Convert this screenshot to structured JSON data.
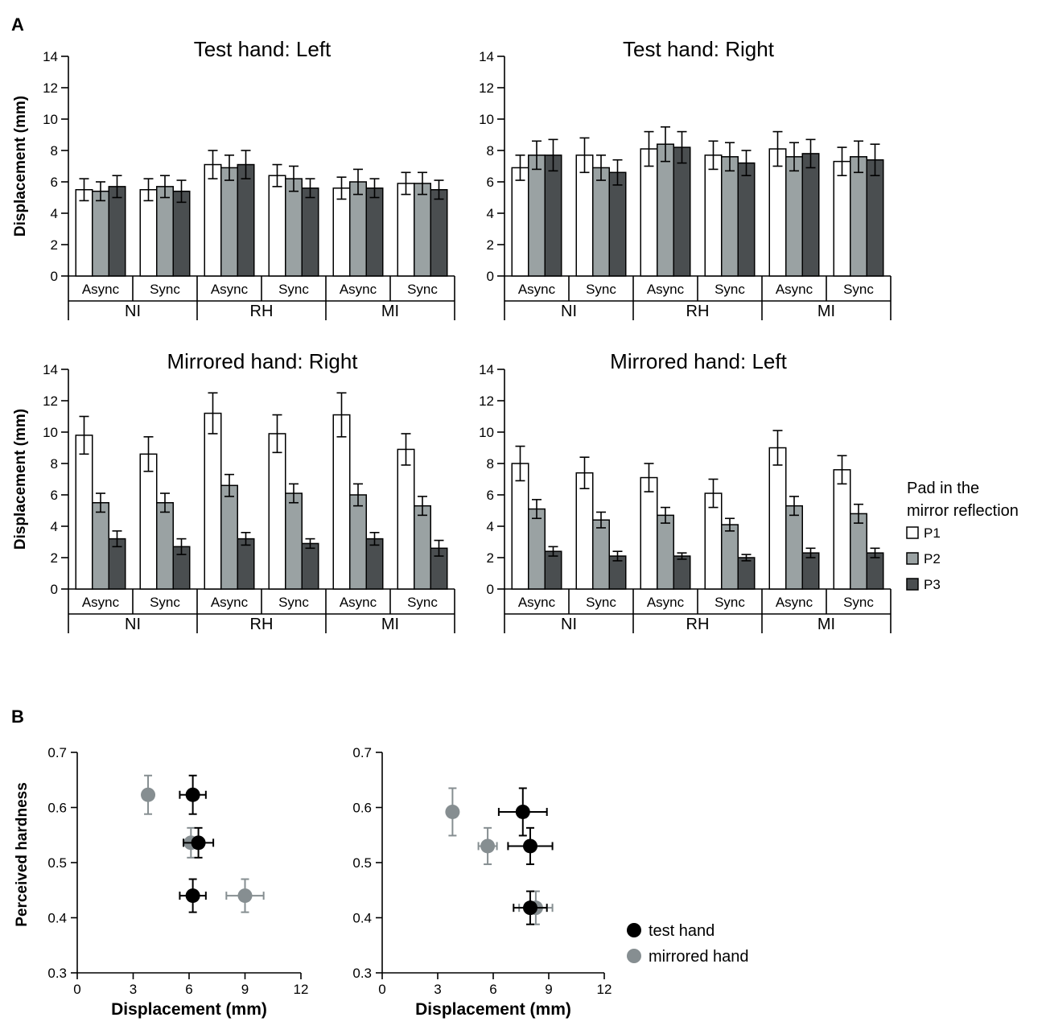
{
  "panel_labels": {
    "a": "A",
    "b": "B"
  },
  "legend": {
    "title_line1": "Pad in the",
    "title_line2": "mirror reflection",
    "pads": [
      {
        "label": "P1",
        "color": "#ffffff"
      },
      {
        "label": "P2",
        "color": "#9aa2a3"
      },
      {
        "label": "P3",
        "color": "#4a4e50"
      }
    ],
    "scatter": [
      {
        "label": "test hand",
        "color": "#000000"
      },
      {
        "label": "mirrored hand",
        "color": "#868e91"
      }
    ]
  },
  "chart_data": [
    {
      "type": "bar",
      "title": "Test hand: Left",
      "ylabel": "Displacement (mm)",
      "ylim": [
        0,
        14
      ],
      "yticks": [
        0,
        2,
        4,
        6,
        8,
        10,
        12,
        14
      ],
      "groups": [
        "NI",
        "RH",
        "MI"
      ],
      "subgroups": [
        "Async",
        "Sync"
      ],
      "series": [
        {
          "name": "P1",
          "values": [
            5.5,
            5.5,
            7.1,
            6.4,
            5.6,
            5.9
          ],
          "errors": [
            0.7,
            0.7,
            0.9,
            0.7,
            0.7,
            0.7
          ]
        },
        {
          "name": "P2",
          "values": [
            5.4,
            5.7,
            6.9,
            6.2,
            6.0,
            5.9
          ],
          "errors": [
            0.6,
            0.7,
            0.8,
            0.8,
            0.8,
            0.7
          ]
        },
        {
          "name": "P3",
          "values": [
            5.7,
            5.4,
            7.1,
            5.6,
            5.6,
            5.5
          ],
          "errors": [
            0.7,
            0.7,
            0.9,
            0.6,
            0.6,
            0.6
          ]
        }
      ]
    },
    {
      "type": "bar",
      "title": "Test hand: Right",
      "ylabel": "",
      "ylim": [
        0,
        14
      ],
      "yticks": [
        0,
        2,
        4,
        6,
        8,
        10,
        12,
        14
      ],
      "groups": [
        "NI",
        "RH",
        "MI"
      ],
      "subgroups": [
        "Async",
        "Sync"
      ],
      "series": [
        {
          "name": "P1",
          "values": [
            6.9,
            7.7,
            8.1,
            7.7,
            8.1,
            7.3
          ],
          "errors": [
            0.8,
            1.1,
            1.1,
            0.9,
            1.1,
            0.9
          ]
        },
        {
          "name": "P2",
          "values": [
            7.7,
            6.9,
            8.4,
            7.6,
            7.6,
            7.6
          ],
          "errors": [
            0.9,
            0.8,
            1.1,
            0.9,
            0.9,
            1.0
          ]
        },
        {
          "name": "P3",
          "values": [
            7.7,
            6.6,
            8.2,
            7.2,
            7.8,
            7.4
          ],
          "errors": [
            1.0,
            0.8,
            1.0,
            0.8,
            0.9,
            1.0
          ]
        }
      ]
    },
    {
      "type": "bar",
      "title": "Mirrored hand: Right",
      "ylabel": "Displacement (mm)",
      "ylim": [
        0,
        14
      ],
      "yticks": [
        0,
        2,
        4,
        6,
        8,
        10,
        12,
        14
      ],
      "groups": [
        "NI",
        "RH",
        "MI"
      ],
      "subgroups": [
        "Async",
        "Sync"
      ],
      "series": [
        {
          "name": "P1",
          "values": [
            9.8,
            8.6,
            11.2,
            9.9,
            11.1,
            8.9
          ],
          "errors": [
            1.2,
            1.1,
            1.3,
            1.2,
            1.4,
            1.0
          ]
        },
        {
          "name": "P2",
          "values": [
            5.5,
            5.5,
            6.6,
            6.1,
            6.0,
            5.3
          ],
          "errors": [
            0.6,
            0.6,
            0.7,
            0.6,
            0.7,
            0.6
          ]
        },
        {
          "name": "P3",
          "values": [
            3.2,
            2.7,
            3.2,
            2.9,
            3.2,
            2.6
          ],
          "errors": [
            0.5,
            0.5,
            0.4,
            0.3,
            0.4,
            0.5
          ]
        }
      ]
    },
    {
      "type": "bar",
      "title": "Mirrored hand: Left",
      "ylabel": "",
      "ylim": [
        0,
        14
      ],
      "yticks": [
        0,
        2,
        4,
        6,
        8,
        10,
        12,
        14
      ],
      "groups": [
        "NI",
        "RH",
        "MI"
      ],
      "subgroups": [
        "Async",
        "Sync"
      ],
      "series": [
        {
          "name": "P1",
          "values": [
            8.0,
            7.4,
            7.1,
            6.1,
            9.0,
            7.6
          ],
          "errors": [
            1.1,
            1.0,
            0.9,
            0.9,
            1.1,
            0.9
          ]
        },
        {
          "name": "P2",
          "values": [
            5.1,
            4.4,
            4.7,
            4.1,
            5.3,
            4.8
          ],
          "errors": [
            0.6,
            0.5,
            0.5,
            0.4,
            0.6,
            0.6
          ]
        },
        {
          "name": "P3",
          "values": [
            2.4,
            2.1,
            2.1,
            2.0,
            2.3,
            2.3
          ],
          "errors": [
            0.3,
            0.3,
            0.2,
            0.2,
            0.3,
            0.3
          ]
        }
      ]
    },
    {
      "type": "scatter",
      "xlabel": "Displacement (mm)",
      "ylabel": "Perceived hardness",
      "xlim": [
        0,
        12
      ],
      "ylim": [
        0.3,
        0.7
      ],
      "xticks": [
        0,
        3,
        6,
        9,
        12
      ],
      "yticks": [
        0.3,
        0.4,
        0.5,
        0.6,
        0.7
      ],
      "series": [
        {
          "name": "test hand",
          "points": [
            {
              "x": 6.2,
              "y": 0.623,
              "xerr": 0.7,
              "yerr": 0.035
            },
            {
              "x": 6.5,
              "y": 0.536,
              "xerr": 0.8,
              "yerr": 0.027
            },
            {
              "x": 6.2,
              "y": 0.44,
              "xerr": 0.7,
              "yerr": 0.03
            }
          ]
        },
        {
          "name": "mirrored hand",
          "points": [
            {
              "x": 3.8,
              "y": 0.623,
              "xerr": 0.2,
              "yerr": 0.035
            },
            {
              "x": 6.1,
              "y": 0.536,
              "xerr": 0.4,
              "yerr": 0.027
            },
            {
              "x": 9.0,
              "y": 0.44,
              "xerr": 1.0,
              "yerr": 0.03
            }
          ]
        }
      ]
    },
    {
      "type": "scatter",
      "xlabel": "Displacement (mm)",
      "ylabel": "",
      "xlim": [
        0,
        12
      ],
      "ylim": [
        0.3,
        0.7
      ],
      "xticks": [
        0,
        3,
        6,
        9,
        12
      ],
      "yticks": [
        0.3,
        0.4,
        0.5,
        0.6,
        0.7
      ],
      "series": [
        {
          "name": "test hand",
          "points": [
            {
              "x": 7.6,
              "y": 0.592,
              "xerr": 1.3,
              "yerr": 0.043
            },
            {
              "x": 8.0,
              "y": 0.53,
              "xerr": 1.2,
              "yerr": 0.033
            },
            {
              "x": 8.0,
              "y": 0.418,
              "xerr": 0.9,
              "yerr": 0.03
            }
          ]
        },
        {
          "name": "mirrored hand",
          "points": [
            {
              "x": 3.8,
              "y": 0.592,
              "xerr": 0.1,
              "yerr": 0.043
            },
            {
              "x": 5.7,
              "y": 0.53,
              "xerr": 0.5,
              "yerr": 0.033
            },
            {
              "x": 8.3,
              "y": 0.418,
              "xerr": 0.9,
              "yerr": 0.03
            }
          ]
        }
      ]
    }
  ]
}
